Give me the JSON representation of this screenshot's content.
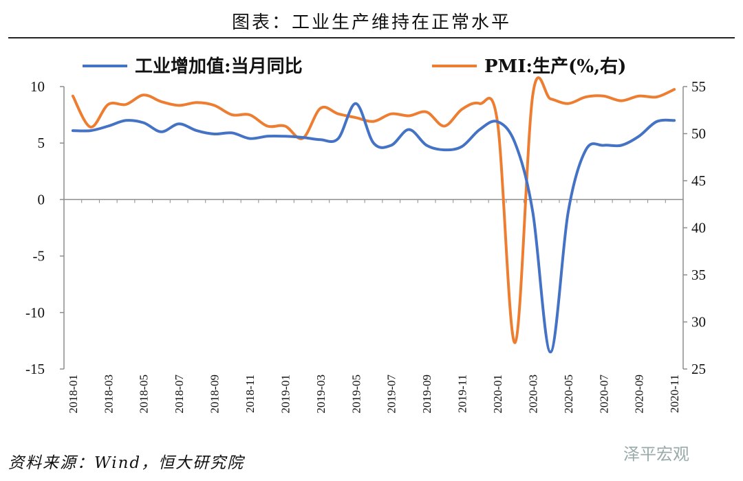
{
  "title": "图表：工业生产维持在正常水平",
  "source": "资料来源：Wind，恒大研究院",
  "watermark": "泽平宏观",
  "chart_data": {
    "type": "line",
    "title": "图表：工业生产维持在正常水平",
    "legend_position": "top",
    "grid": false,
    "x": [
      "2018-01",
      "2018-02",
      "2018-03",
      "2018-04",
      "2018-05",
      "2018-06",
      "2018-07",
      "2018-08",
      "2018-09",
      "2018-10",
      "2018-11",
      "2018-12",
      "2019-01",
      "2019-02",
      "2019-03",
      "2019-04",
      "2019-05",
      "2019-06",
      "2019-07",
      "2019-08",
      "2019-09",
      "2019-10",
      "2019-11",
      "2019-12",
      "2020-01",
      "2020-02",
      "2020-03",
      "2020-04",
      "2020-05",
      "2020-06",
      "2020-07",
      "2020-08",
      "2020-09",
      "2020-10",
      "2020-11"
    ],
    "x_tick_labels": [
      "2018-01",
      "2018-03",
      "2018-05",
      "2018-07",
      "2018-09",
      "2018-11",
      "2019-01",
      "2019-03",
      "2019-05",
      "2019-07",
      "2019-09",
      "2019-11",
      "2020-01",
      "2020-03",
      "2020-05",
      "2020-07",
      "2020-09",
      "2020-11"
    ],
    "y_left": {
      "min": -15,
      "max": 10,
      "ticks": [
        10,
        5,
        0,
        -5,
        -10,
        -15
      ]
    },
    "y_right": {
      "min": 25,
      "max": 55,
      "ticks": [
        55,
        50,
        45,
        40,
        35,
        30,
        25
      ]
    },
    "series": [
      {
        "name": "工业增加值:当月同比",
        "axis": "left",
        "color": "#4472C4",
        "values": [
          6.1,
          6.1,
          6.5,
          7.0,
          6.8,
          6.0,
          6.7,
          6.1,
          5.8,
          5.9,
          5.4,
          5.6,
          5.6,
          5.5,
          5.3,
          5.4,
          8.5,
          5.0,
          4.8,
          6.2,
          4.8,
          4.4,
          4.7,
          6.2,
          6.9,
          5.0,
          -1.1,
          -13.5,
          -1.1,
          4.4,
          4.8,
          4.8,
          5.6,
          6.9,
          7.0
        ]
      },
      {
        "name": "PMI:生产(%,右)",
        "axis": "right",
        "color": "#ED7D31",
        "values": [
          54.0,
          50.7,
          53.1,
          53.1,
          54.1,
          53.4,
          53.0,
          53.3,
          53.0,
          52.0,
          52.0,
          50.8,
          50.8,
          49.5,
          52.7,
          52.1,
          51.7,
          51.3,
          52.1,
          51.9,
          52.3,
          50.8,
          52.6,
          53.2,
          51.3,
          27.8,
          54.1,
          53.7,
          53.2,
          53.9,
          54.0,
          53.5,
          54.0,
          53.9,
          54.7
        ]
      }
    ]
  }
}
